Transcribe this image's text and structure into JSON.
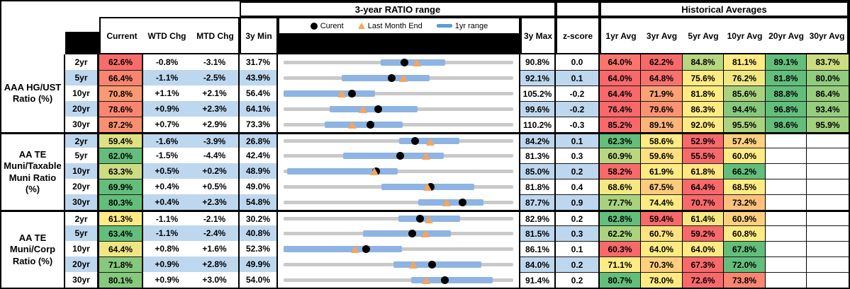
{
  "header": {
    "range_group_title": "3-year RATIO range",
    "hist_group_title": "Historical Averages",
    "col_current": "Current",
    "col_wtd": "WTD Chg",
    "col_mtd": "MTD Chg",
    "col_min": "3y Min",
    "col_max": "3y Max",
    "col_z": "z-score",
    "avg_cols": [
      "1yr Avg",
      "3yr Avg",
      "5yr Avg",
      "10yr Avg",
      "20yr Avg",
      "30yr Avg"
    ]
  },
  "legend": {
    "current_label": "Curent",
    "lme_label": "Last Month End",
    "range_label": "1yr range",
    "current_icon": "black-dot-icon",
    "lme_icon": "orange-triangle-icon",
    "range_icon": "blue-bar-icon"
  },
  "colors": {
    "scale_min_red": "#F8696B",
    "scale_mid_yellow": "#FFEB84",
    "scale_max_green": "#63BE7B",
    "row_stripe_blue": "#BDD7EE",
    "range_track_gray": "#C9C9C9",
    "range_bar_blue": "#8DB4E2",
    "legend_swatch_blue": "#5B9BD5",
    "marker_current_black": "#000000",
    "marker_lme_orange": "#F4A460"
  },
  "chart_data": {
    "type": "table",
    "title": "3-year RATIO range with Historical Averages",
    "value_unit": "%",
    "embedded_chart_type": "bullet/range per row: 1yr range bar within 3y min-max track, current dot, last-month-end triangle",
    "sections": [
      {
        "label_lines": [
          "AAA HG/UST",
          "Ratio (%)"
        ],
        "rows": [
          {
            "tenor": "2yr",
            "current": 62.6,
            "wtd": "-0.8%",
            "mtd": "-3.1%",
            "min3y": 31.7,
            "max3y": 90.8,
            "z": "0.0",
            "avgs": [
              64.0,
              62.2,
              84.8,
              81.1,
              89.1,
              83.7
            ],
            "last_month_end": 65.7,
            "range1yr": [
              56.5,
              73.0
            ]
          },
          {
            "tenor": "5yr",
            "current": 66.4,
            "wtd": "-1.1%",
            "mtd": "-2.5%",
            "min3y": 43.9,
            "max3y": 92.1,
            "z": "0.1",
            "avgs": [
              64.0,
              64.8,
              75.6,
              76.2,
              81.8,
              80.0
            ],
            "last_month_end": 68.9,
            "range1yr": [
              56.0,
              74.3
            ]
          },
          {
            "tenor": "10yr",
            "current": 70.8,
            "wtd": "+1.1%",
            "mtd": "+2.1%",
            "min3y": 56.4,
            "max3y": 105.2,
            "z": "-0.2",
            "avgs": [
              64.4,
              71.9,
              81.8,
              85.6,
              88.8,
              86.4
            ],
            "last_month_end": 68.7,
            "range1yr": [
              56.4,
              75.7
            ]
          },
          {
            "tenor": "20yr",
            "current": 78.6,
            "wtd": "+0.9%",
            "mtd": "+2.3%",
            "min3y": 64.1,
            "max3y": 99.6,
            "z": "-0.2",
            "avgs": [
              76.4,
              79.6,
              86.3,
              94.4,
              96.8,
              93.4
            ],
            "last_month_end": 76.3,
            "range1yr": [
              71.2,
              84.7
            ]
          },
          {
            "tenor": "30yr",
            "current": 87.2,
            "wtd": "+0.7%",
            "mtd": "+2.9%",
            "min3y": 73.3,
            "max3y": 110.2,
            "z": "-0.3",
            "avgs": [
              85.2,
              89.1,
              92.0,
              95.5,
              98.6,
              95.9
            ],
            "last_month_end": 84.3,
            "range1yr": [
              79.9,
              92.3
            ]
          }
        ]
      },
      {
        "label_lines": [
          "AA TE",
          "Muni/Taxable",
          "Muni Ratio",
          "(%)"
        ],
        "rows": [
          {
            "tenor": "2yr",
            "current": 59.4,
            "wtd": "-1.6%",
            "mtd": "-3.9%",
            "min3y": 26.8,
            "max3y": 84.2,
            "z": "0.1",
            "avgs": [
              62.3,
              58.6,
              52.9,
              57.4,
              null,
              null
            ],
            "last_month_end": 63.3,
            "range1yr": [
              55.5,
              70.5
            ]
          },
          {
            "tenor": "5yr",
            "current": 62.0,
            "wtd": "-1.5%",
            "mtd": "-4.4%",
            "min3y": 42.4,
            "max3y": 81.3,
            "z": "0.3",
            "avgs": [
              60.9,
              59.6,
              55.5,
              60.0,
              null,
              null
            ],
            "last_month_end": 66.4,
            "range1yr": [
              52.4,
              69.4
            ]
          },
          {
            "tenor": "10yr",
            "current": 63.3,
            "wtd": "+0.5%",
            "mtd": "+0.2%",
            "min3y": 48.9,
            "max3y": 85.0,
            "z": "0.2",
            "avgs": [
              58.2,
              61.9,
              61.8,
              66.2,
              null,
              null
            ],
            "last_month_end": 63.1,
            "range1yr": [
              49.4,
              66.7
            ]
          },
          {
            "tenor": "20yr",
            "current": 69.9,
            "wtd": "+0.4%",
            "mtd": "+0.5%",
            "min3y": 49.0,
            "max3y": 81.8,
            "z": "0.4",
            "avgs": [
              68.6,
              67.5,
              64.4,
              68.5,
              null,
              null
            ],
            "last_month_end": 69.4,
            "range1yr": [
              62.9,
              76.1
            ]
          },
          {
            "tenor": "30yr",
            "current": 80.3,
            "wtd": "+0.4%",
            "mtd": "+2.3%",
            "min3y": 54.8,
            "max3y": 87.7,
            "z": "0.9",
            "avgs": [
              77.7,
              74.4,
              70.7,
              73.2,
              null,
              null
            ],
            "last_month_end": 78.0,
            "range1yr": [
              74.0,
              83.3
            ]
          }
        ]
      },
      {
        "label_lines": [
          "AA TE",
          "Muni/Corp",
          "Ratio (%)"
        ],
        "rows": [
          {
            "tenor": "2yr",
            "current": 61.3,
            "wtd": "-1.1%",
            "mtd": "-2.1%",
            "min3y": 30.2,
            "max3y": 82.9,
            "z": "0.2",
            "avgs": [
              62.8,
              59.4,
              61.4,
              60.9,
              null,
              null
            ],
            "last_month_end": 63.4,
            "range1yr": [
              56.4,
              70.5
            ]
          },
          {
            "tenor": "5yr",
            "current": 63.4,
            "wtd": "-1.1%",
            "mtd": "-2.4%",
            "min3y": 40.8,
            "max3y": 81.5,
            "z": "0.3",
            "avgs": [
              62.2,
              60.7,
              59.2,
              60.8,
              null,
              null
            ],
            "last_month_end": 65.8,
            "range1yr": [
              54.8,
              70.3
            ]
          },
          {
            "tenor": "10yr",
            "current": 64.4,
            "wtd": "+0.8%",
            "mtd": "+1.6%",
            "min3y": 52.3,
            "max3y": 86.1,
            "z": "0.1",
            "avgs": [
              60.3,
              64.0,
              64.0,
              67.8,
              null,
              null
            ],
            "last_month_end": 62.8,
            "range1yr": [
              52.3,
              69.6
            ]
          },
          {
            "tenor": "20yr",
            "current": 71.8,
            "wtd": "+0.9%",
            "mtd": "+2.8%",
            "min3y": 49.9,
            "max3y": 84.0,
            "z": "0.2",
            "avgs": [
              71.1,
              70.3,
              67.3,
              72.0,
              null,
              null
            ],
            "last_month_end": 69.0,
            "range1yr": [
              66.1,
              79.1
            ]
          },
          {
            "tenor": "30yr",
            "current": 80.1,
            "wtd": "+0.9%",
            "mtd": "+3.0%",
            "min3y": 54.0,
            "max3y": 91.4,
            "z": "0.2",
            "avgs": [
              80.7,
              78.0,
              72.6,
              73.8,
              null,
              null
            ],
            "last_month_end": 77.1,
            "range1yr": [
              74.6,
              87.9
            ]
          }
        ]
      }
    ]
  }
}
